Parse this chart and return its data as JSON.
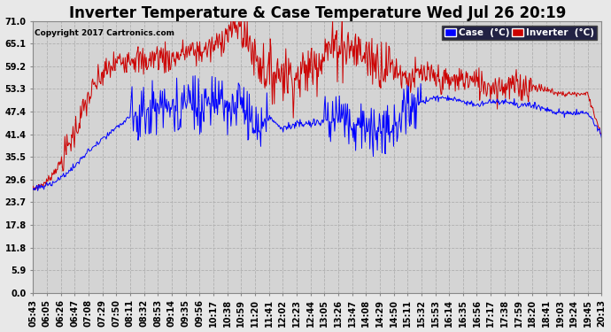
{
  "title": "Inverter Temperature & Case Temperature Wed Jul 26 20:19",
  "copyright": "Copyright 2017 Cartronics.com",
  "ylim": [
    0.0,
    71.0
  ],
  "yticks": [
    0.0,
    5.9,
    11.8,
    17.8,
    23.7,
    29.6,
    35.5,
    41.4,
    47.4,
    53.3,
    59.2,
    65.1,
    71.0
  ],
  "xtick_labels": [
    "05:43",
    "06:05",
    "06:26",
    "06:47",
    "07:08",
    "07:29",
    "07:50",
    "08:11",
    "08:32",
    "08:53",
    "09:14",
    "09:35",
    "09:56",
    "10:17",
    "10:38",
    "10:59",
    "11:20",
    "11:41",
    "12:02",
    "12:23",
    "12:44",
    "13:05",
    "13:26",
    "13:47",
    "14:08",
    "14:29",
    "14:50",
    "15:11",
    "15:32",
    "15:53",
    "16:14",
    "16:35",
    "16:56",
    "17:17",
    "17:38",
    "17:59",
    "18:20",
    "18:41",
    "19:03",
    "19:24",
    "19:45",
    "20:13"
  ],
  "legend_labels": [
    "Case  (°C)",
    "Inverter  (°C)"
  ],
  "case_color": "#0000ff",
  "inv_color": "#cc0000",
  "bg_color": "#d8d8d8",
  "plot_bg": "#d0d0d0",
  "grid_color": "#bbbbbb",
  "title_fontsize": 12,
  "tick_fontsize": 7,
  "case_data": [
    27,
    28,
    30,
    33,
    37,
    40,
    43,
    46,
    48,
    49,
    49,
    49,
    49,
    49,
    49,
    49,
    42,
    46,
    43,
    44,
    44,
    45,
    45,
    44,
    43,
    42,
    43,
    49,
    50,
    51,
    51,
    50,
    49,
    50,
    50,
    49,
    49,
    48,
    47,
    47,
    47,
    41
  ],
  "inv_data": [
    27,
    29,
    34,
    42,
    51,
    57,
    60,
    62,
    60,
    62,
    61,
    63,
    63,
    64,
    68,
    70,
    62,
    57,
    58,
    56,
    59,
    63,
    65,
    64,
    62,
    60,
    59,
    56,
    57,
    56,
    55,
    56,
    55,
    54,
    54,
    54,
    54,
    53,
    52,
    52,
    52,
    41
  ]
}
